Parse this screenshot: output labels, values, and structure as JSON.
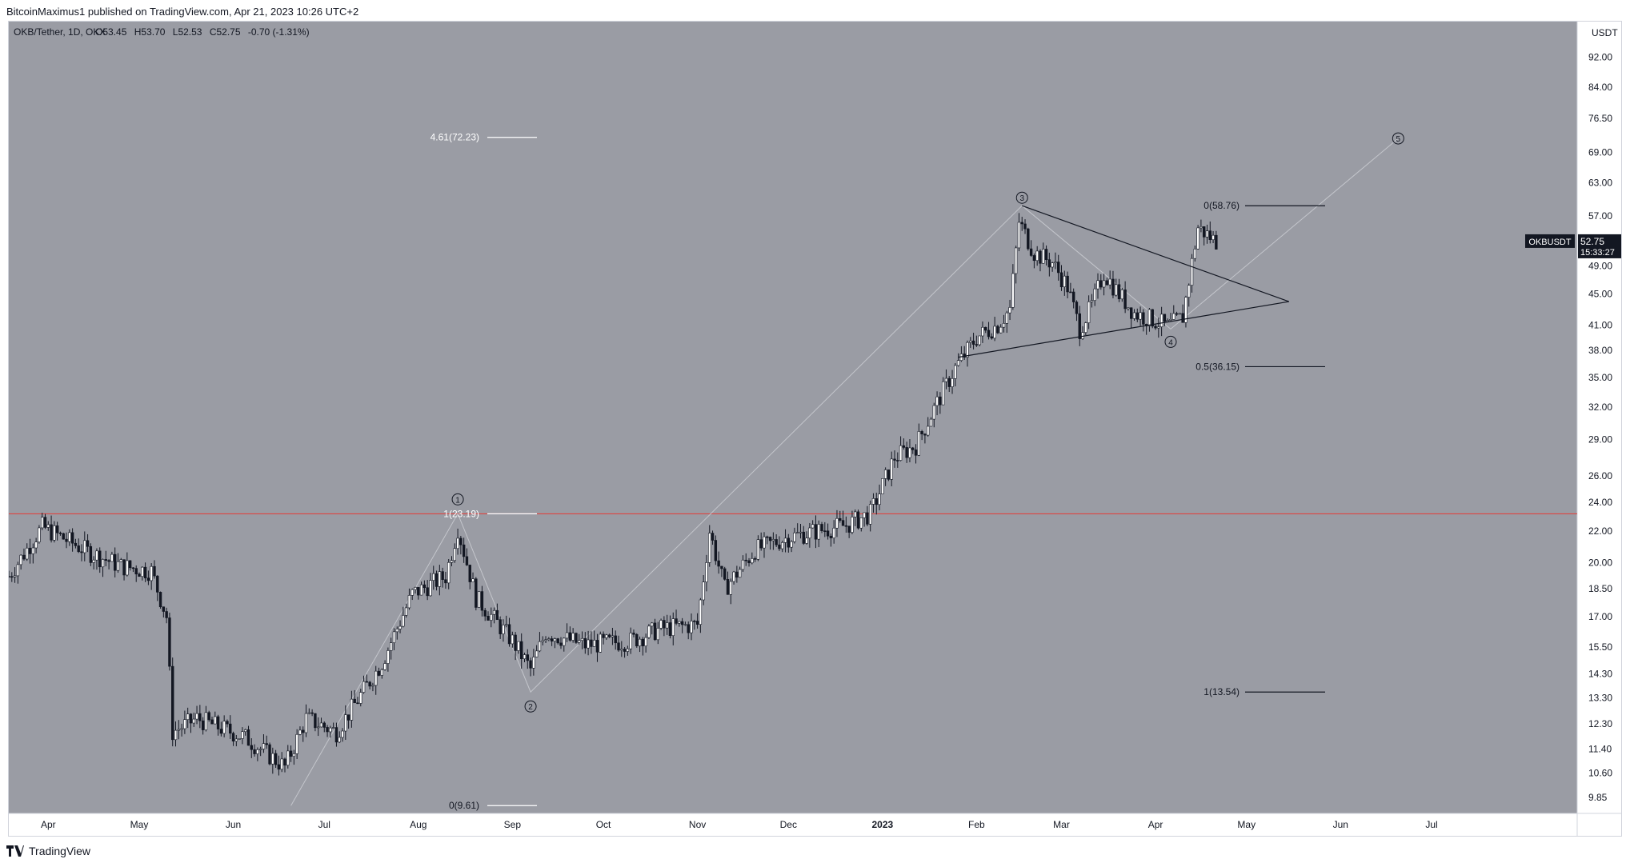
{
  "header": {
    "published": "BitcoinMaximus1 published on TradingView.com, Apr 21, 2023 10:26 UTC+2"
  },
  "legend": {
    "symbol": "OKB/Tether, 1D, OKX",
    "open_label": "O",
    "open": "53.45",
    "high_label": "H",
    "high": "53.70",
    "low_label": "L",
    "low": "52.53",
    "close_label": "C",
    "close": "52.75",
    "change": "-0.70 (-1.31%)"
  },
  "footer": {
    "brand": "TradingView"
  },
  "colors": {
    "background": "#9a9ca4",
    "candle": "#131722",
    "horizontal_line": "#e53935",
    "fib_white": "#ffffff",
    "fib_black": "#131722",
    "axis_text": "#131722"
  },
  "chart_data": {
    "type": "candlestick",
    "currency_label": "USDT",
    "y_scale": "log",
    "ylim": [
      9.5,
      100
    ],
    "y_ticks": [
      "92.00",
      "84.00",
      "76.50",
      "69.00",
      "63.00",
      "57.00",
      "52.00",
      "49.00",
      "45.00",
      "41.00",
      "38.00",
      "35.00",
      "32.00",
      "29.00",
      "26.00",
      "24.00",
      "22.00",
      "20.00",
      "18.50",
      "17.00",
      "15.50",
      "14.30",
      "13.30",
      "12.30",
      "11.40",
      "10.60",
      "9.85"
    ],
    "x_ticks": [
      "Apr",
      "May",
      "Jun",
      "Jul",
      "Aug",
      "Sep",
      "Oct",
      "Nov",
      "Dec",
      "2023",
      "Feb",
      "Mar",
      "Apr",
      "May",
      "Jun",
      "Jul"
    ],
    "x_tick_dates": [
      "2022-04-01",
      "2022-05-01",
      "2022-06-01",
      "2022-07-01",
      "2022-08-01",
      "2022-09-01",
      "2022-10-01",
      "2022-11-01",
      "2022-12-01",
      "2023-01-01",
      "2023-02-01",
      "2023-03-01",
      "2023-04-01",
      "2023-05-01",
      "2023-06-01",
      "2023-07-01"
    ],
    "xlim": [
      "2022-03-19",
      "2023-08-18"
    ],
    "price_points": [
      [
        "2022-03-19",
        19.2
      ],
      [
        "2022-03-30",
        22.3
      ],
      [
        "2022-04-15",
        20.6
      ],
      [
        "2022-04-25",
        19.8
      ],
      [
        "2022-05-05",
        19.5
      ],
      [
        "2022-05-10",
        17.0
      ],
      [
        "2022-05-12",
        12.0
      ],
      [
        "2022-05-20",
        12.5
      ],
      [
        "2022-06-05",
        11.8
      ],
      [
        "2022-06-18",
        10.8
      ],
      [
        "2022-06-25",
        12.5
      ],
      [
        "2022-07-05",
        12.0
      ],
      [
        "2022-07-20",
        14.8
      ],
      [
        "2022-07-30",
        18.2
      ],
      [
        "2022-08-10",
        19.2
      ],
      [
        "2022-08-14",
        22.2
      ],
      [
        "2022-08-20",
        18.0
      ],
      [
        "2022-09-01",
        15.8
      ],
      [
        "2022-09-07",
        14.5
      ],
      [
        "2022-09-12",
        16.2
      ],
      [
        "2022-09-25",
        15.6
      ],
      [
        "2022-10-10",
        15.8
      ],
      [
        "2022-10-20",
        16.4
      ],
      [
        "2022-11-01",
        16.6
      ],
      [
        "2022-11-05",
        22.0
      ],
      [
        "2022-11-10",
        18.5
      ],
      [
        "2022-11-20",
        20.8
      ],
      [
        "2022-12-01",
        21.6
      ],
      [
        "2022-12-10",
        22.0
      ],
      [
        "2022-12-20",
        22.4
      ],
      [
        "2022-12-28",
        23.2
      ],
      [
        "2023-01-05",
        27.5
      ],
      [
        "2023-01-12",
        28.5
      ],
      [
        "2023-01-20",
        33.0
      ],
      [
        "2023-01-25",
        36.0
      ],
      [
        "2023-02-01",
        39.5
      ],
      [
        "2023-02-08",
        41.0
      ],
      [
        "2023-02-12",
        43.0
      ],
      [
        "2023-02-15",
        56.0
      ],
      [
        "2023-02-20",
        51.0
      ],
      [
        "2023-02-26",
        49.5
      ],
      [
        "2023-03-03",
        46.0
      ],
      [
        "2023-03-07",
        40.5
      ],
      [
        "2023-03-11",
        43.5
      ],
      [
        "2023-03-15",
        48.0
      ],
      [
        "2023-03-20",
        45.0
      ],
      [
        "2023-03-25",
        42.5
      ],
      [
        "2023-04-01",
        41.5
      ],
      [
        "2023-04-05",
        40.8
      ],
      [
        "2023-04-10",
        42.0
      ],
      [
        "2023-04-13",
        49.5
      ],
      [
        "2023-04-15",
        55.0
      ],
      [
        "2023-04-21",
        52.75
      ]
    ],
    "last_price": {
      "symbol": "OKBUSDT",
      "price": "52.75",
      "countdown": "15:33:27"
    },
    "horizontal_line": {
      "price": 23.19
    },
    "fib_left": [
      {
        "label": "4.61(72.23)",
        "price": 72.23
      },
      {
        "label": "1(23.19)",
        "price": 23.19
      },
      {
        "label": "0(9.61)",
        "price": 9.61
      }
    ],
    "fib_right": [
      {
        "label": "0(58.76)",
        "price": 58.76
      },
      {
        "label": "0.5(36.15)",
        "price": 36.15
      },
      {
        "label": "1(13.54)",
        "price": 13.54
      }
    ],
    "wave_labels": [
      {
        "label": "1",
        "date": "2022-08-14",
        "price": 23.19
      },
      {
        "label": "2",
        "date": "2022-09-07",
        "price": 13.54
      },
      {
        "label": "3",
        "date": "2023-02-16",
        "price": 58.76
      },
      {
        "label": "4",
        "date": "2023-04-06",
        "price": 40.5
      },
      {
        "label": "5",
        "date": "2023-06-20",
        "price": 72.0
      }
    ],
    "wave_path": [
      [
        "2022-06-20",
        9.61
      ],
      [
        "2022-08-14",
        23.19
      ],
      [
        "2022-09-07",
        13.54
      ],
      [
        "2023-02-16",
        58.76
      ],
      [
        "2023-04-06",
        40.5
      ],
      [
        "2023-06-20",
        72.0
      ]
    ],
    "triangle": {
      "upper": [
        [
          "2023-02-16",
          58.76
        ],
        [
          "2023-05-15",
          44.0
        ]
      ],
      "lower": [
        [
          "2023-01-26",
          37.2
        ],
        [
          "2023-05-15",
          44.0
        ]
      ]
    }
  }
}
